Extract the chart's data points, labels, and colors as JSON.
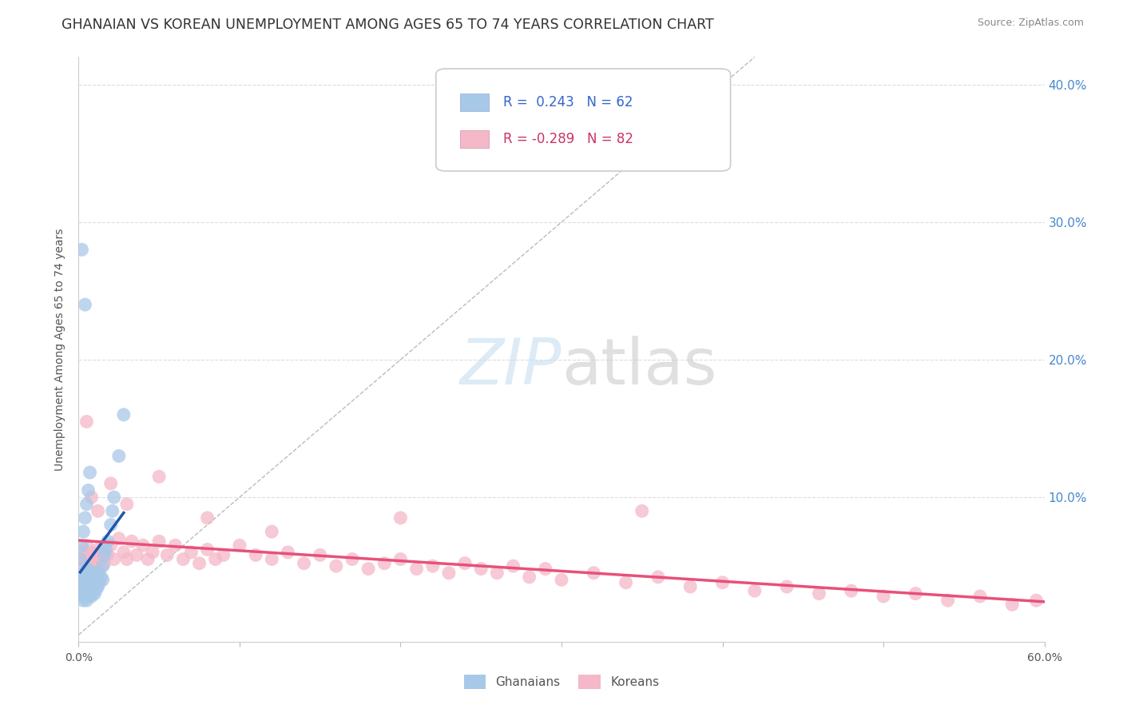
{
  "title": "GHANAIAN VS KOREAN UNEMPLOYMENT AMONG AGES 65 TO 74 YEARS CORRELATION CHART",
  "source": "Source: ZipAtlas.com",
  "ylabel": "Unemployment Among Ages 65 to 74 years",
  "legend_ghanaians": "Ghanaians",
  "legend_koreans": "Koreans",
  "r_ghanaians": 0.243,
  "n_ghanaians": 62,
  "r_koreans": -0.289,
  "n_koreans": 82,
  "xlim": [
    0.0,
    0.6
  ],
  "ylim": [
    -0.005,
    0.42
  ],
  "color_ghanaians": "#a8c8e8",
  "color_koreans": "#f4b8c8",
  "color_ghanaians_line": "#2255aa",
  "color_koreans_line": "#e8507a",
  "background_color": "#ffffff",
  "ghanaians_x": [
    0.001,
    0.001,
    0.001,
    0.002,
    0.002,
    0.002,
    0.002,
    0.003,
    0.003,
    0.003,
    0.003,
    0.003,
    0.004,
    0.004,
    0.004,
    0.004,
    0.005,
    0.005,
    0.005,
    0.005,
    0.005,
    0.006,
    0.006,
    0.006,
    0.006,
    0.007,
    0.007,
    0.007,
    0.008,
    0.008,
    0.008,
    0.009,
    0.009,
    0.009,
    0.01,
    0.01,
    0.01,
    0.011,
    0.011,
    0.012,
    0.012,
    0.013,
    0.014,
    0.015,
    0.015,
    0.016,
    0.017,
    0.018,
    0.02,
    0.021,
    0.022,
    0.025,
    0.028,
    0.001,
    0.002,
    0.003,
    0.004,
    0.005,
    0.006,
    0.007,
    0.002,
    0.004
  ],
  "ghanaians_y": [
    0.03,
    0.035,
    0.04,
    0.028,
    0.033,
    0.038,
    0.042,
    0.025,
    0.03,
    0.035,
    0.04,
    0.045,
    0.028,
    0.032,
    0.038,
    0.044,
    0.025,
    0.03,
    0.035,
    0.04,
    0.048,
    0.028,
    0.033,
    0.04,
    0.047,
    0.03,
    0.035,
    0.042,
    0.028,
    0.035,
    0.043,
    0.032,
    0.038,
    0.045,
    0.03,
    0.038,
    0.045,
    0.033,
    0.042,
    0.035,
    0.045,
    0.038,
    0.042,
    0.04,
    0.05,
    0.058,
    0.062,
    0.068,
    0.08,
    0.09,
    0.1,
    0.13,
    0.16,
    0.055,
    0.065,
    0.075,
    0.085,
    0.095,
    0.105,
    0.118,
    0.28,
    0.24
  ],
  "koreans_x": [
    0.001,
    0.002,
    0.003,
    0.004,
    0.005,
    0.006,
    0.007,
    0.008,
    0.009,
    0.01,
    0.011,
    0.012,
    0.013,
    0.014,
    0.015,
    0.016,
    0.018,
    0.02,
    0.022,
    0.025,
    0.028,
    0.03,
    0.033,
    0.036,
    0.04,
    0.043,
    0.046,
    0.05,
    0.055,
    0.06,
    0.065,
    0.07,
    0.075,
    0.08,
    0.085,
    0.09,
    0.1,
    0.11,
    0.12,
    0.13,
    0.14,
    0.15,
    0.16,
    0.17,
    0.18,
    0.19,
    0.2,
    0.21,
    0.22,
    0.23,
    0.24,
    0.25,
    0.26,
    0.27,
    0.28,
    0.29,
    0.3,
    0.32,
    0.34,
    0.36,
    0.38,
    0.4,
    0.42,
    0.44,
    0.46,
    0.48,
    0.5,
    0.52,
    0.54,
    0.56,
    0.58,
    0.595,
    0.005,
    0.008,
    0.012,
    0.02,
    0.03,
    0.05,
    0.08,
    0.12,
    0.2,
    0.35
  ],
  "koreans_y": [
    0.055,
    0.05,
    0.06,
    0.055,
    0.065,
    0.058,
    0.048,
    0.06,
    0.052,
    0.058,
    0.055,
    0.062,
    0.048,
    0.055,
    0.06,
    0.052,
    0.058,
    0.065,
    0.055,
    0.07,
    0.06,
    0.055,
    0.068,
    0.058,
    0.065,
    0.055,
    0.06,
    0.068,
    0.058,
    0.065,
    0.055,
    0.06,
    0.052,
    0.062,
    0.055,
    0.058,
    0.065,
    0.058,
    0.055,
    0.06,
    0.052,
    0.058,
    0.05,
    0.055,
    0.048,
    0.052,
    0.055,
    0.048,
    0.05,
    0.045,
    0.052,
    0.048,
    0.045,
    0.05,
    0.042,
    0.048,
    0.04,
    0.045,
    0.038,
    0.042,
    0.035,
    0.038,
    0.032,
    0.035,
    0.03,
    0.032,
    0.028,
    0.03,
    0.025,
    0.028,
    0.022,
    0.025,
    0.155,
    0.1,
    0.09,
    0.11,
    0.095,
    0.115,
    0.085,
    0.075,
    0.085,
    0.09
  ]
}
